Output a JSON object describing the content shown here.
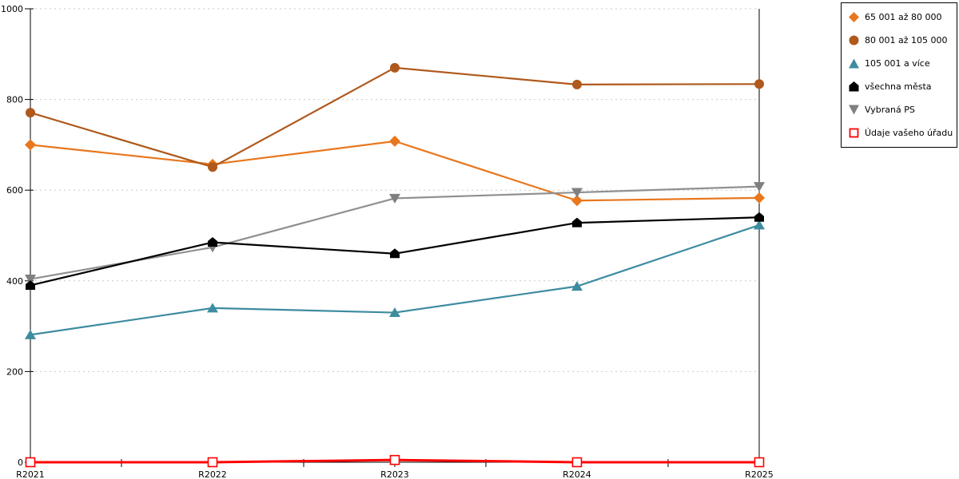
{
  "chart_data": {
    "type": "line",
    "title": "",
    "xlabel": "",
    "ylabel": "",
    "categories": [
      "R2021",
      "R2022",
      "R2023",
      "R2024",
      "R2025"
    ],
    "ylim": [
      0,
      1000
    ],
    "yticks": [
      0,
      200,
      400,
      600,
      800,
      1000
    ],
    "grid": "horizontal-dashed",
    "legend_position": "top-right",
    "axis_color": "#000000",
    "gridline_color": "#c9c9c9",
    "series": [
      {
        "name": "65 001 až 80 000",
        "marker": "diamond",
        "color": "#E8771E",
        "line_width": 2.2,
        "values": [
          700,
          657,
          708,
          577,
          583
        ]
      },
      {
        "name": "80 001 až 105 000",
        "marker": "circle",
        "color": "#AF591C",
        "line_width": 2.2,
        "values": [
          771,
          651,
          870,
          833,
          834
        ]
      },
      {
        "name": "105 001 a více",
        "marker": "triangle-up",
        "color": "#3E8CA0",
        "line_width": 2.2,
        "values": [
          281,
          340,
          330,
          388,
          523
        ]
      },
      {
        "name": "všechna města",
        "marker": "pentagon",
        "color": "#000000",
        "line_width": 2.2,
        "values": [
          390,
          485,
          460,
          528,
          540
        ]
      },
      {
        "name": "Vybraná PS",
        "marker": "triangle-down",
        "color": "#7F7F7F",
        "line_color": "#909090",
        "line_width": 2.2,
        "values": [
          404,
          474,
          582,
          595,
          608
        ]
      },
      {
        "name": "Údaje vašeho úřadu",
        "marker": "square-open",
        "color": "#FF0000",
        "line_width": 3,
        "values": [
          0,
          0,
          5,
          0,
          0
        ]
      }
    ]
  }
}
